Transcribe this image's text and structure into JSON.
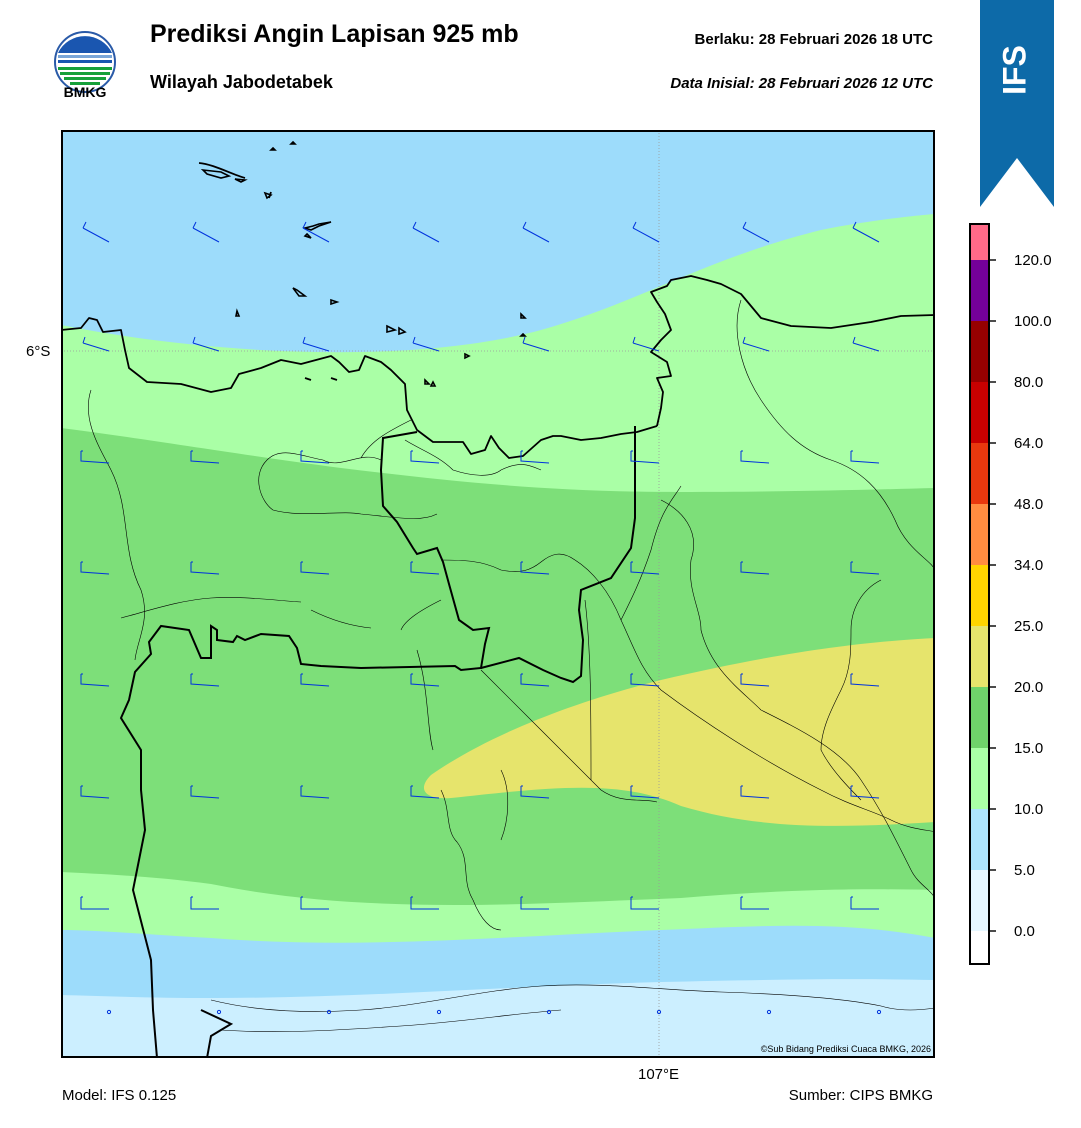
{
  "header": {
    "org": "BMKG",
    "title": "Prediksi Angin Lapisan 925 mb",
    "subtitle": "Wilayah Jabodetabek",
    "valid": "Berlaku:  28 Februari 2026 18 UTC",
    "init": "Data Inisial:  28 Februari 2026 12 UTC",
    "model_badge": "IFS"
  },
  "map": {
    "lat_label": "6°S",
    "lon_label": "107°E",
    "copyright": "©Sub Bidang Prediksi Cuaca BMKG, 2026"
  },
  "colorbar": {
    "ticks": [
      "0.0",
      "5.0",
      "10.0",
      "15.0",
      "20.0",
      "25.0",
      "34.0",
      "48.0",
      "64.0",
      "80.0",
      "100.0",
      "120.0"
    ],
    "colors": [
      "#ffffff",
      "#e6f7ff",
      "#aee4fc",
      "#aaffa6",
      "#6fd36a",
      "#e6e46c",
      "#ffd400",
      "#ff8c40",
      "#e8380e",
      "#c80000",
      "#960000",
      "#740099",
      "#ff6a88"
    ]
  },
  "footer": {
    "model": "Model: IFS 0.125",
    "source": "Sumber: CIPS BMKG"
  },
  "colors": {
    "ribbon": "#0d6aa8",
    "wind_barb": "#0033dd",
    "calm_band": "#ccefff",
    "light_band": "#9ddcfb",
    "band_10_15": "#aaffa6",
    "band_15_20": "#7ddf79",
    "band_20_25": "#e6e46c"
  }
}
